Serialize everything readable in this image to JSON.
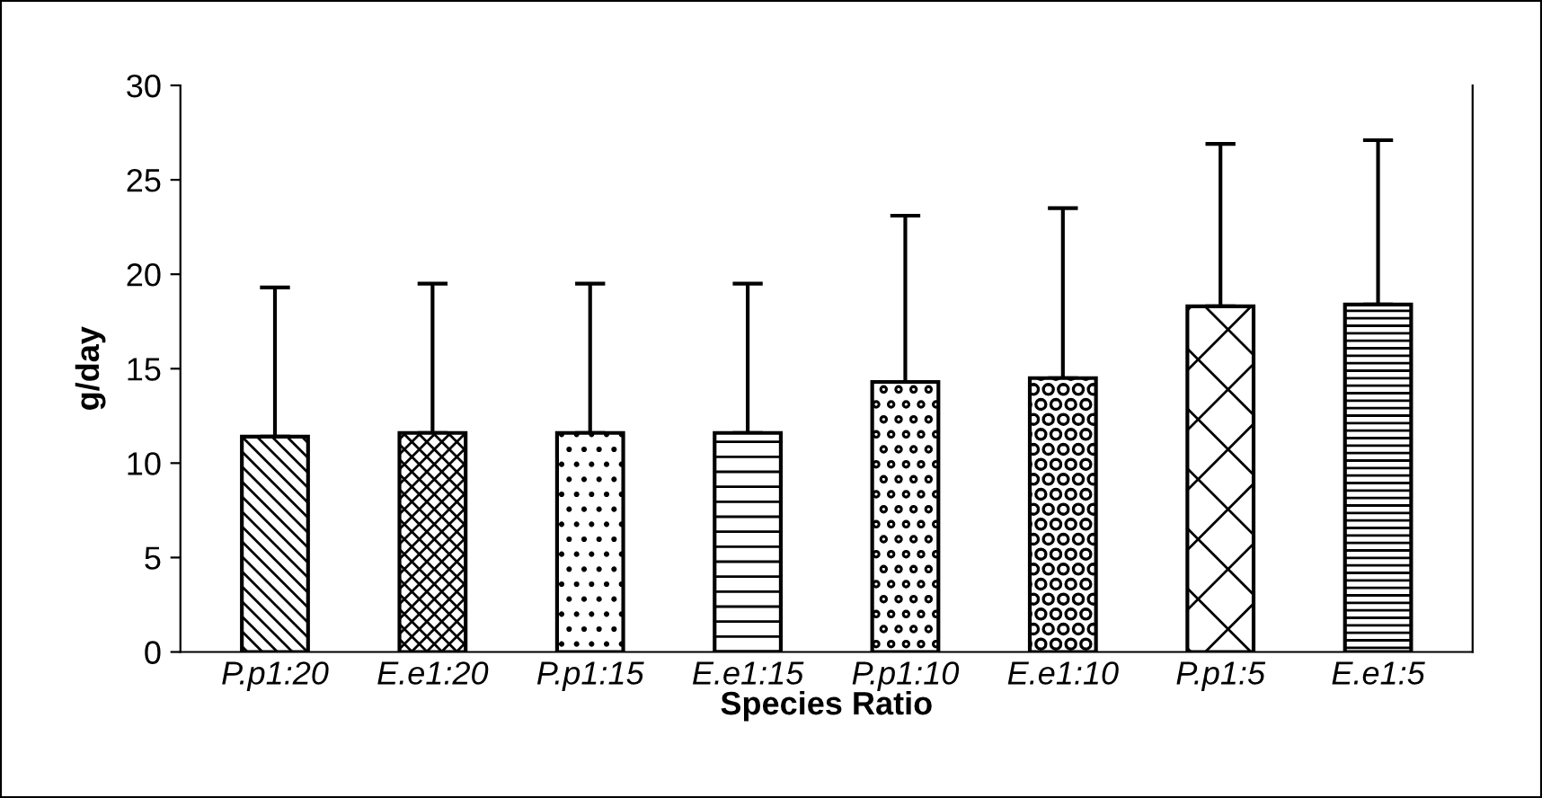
{
  "chart_data": {
    "type": "bar",
    "xlabel": "Species Ratio",
    "ylabel": "g/day",
    "categories": [
      "P.p1:20",
      "E.e1:20",
      "P.p1:15",
      "E.e1:15",
      "P.p1:10",
      "E.e1:10",
      "P.p1:5",
      "E.e1:5"
    ],
    "values": [
      11.4,
      11.6,
      11.6,
      11.6,
      14.3,
      14.5,
      18.3,
      18.4
    ],
    "errors": [
      [
        11.4,
        19.3
      ],
      [
        11.6,
        19.5
      ],
      [
        11.6,
        19.5
      ],
      [
        11.6,
        19.5
      ],
      [
        14.3,
        23.1
      ],
      [
        14.5,
        23.5
      ],
      [
        18.3,
        26.9
      ],
      [
        18.4,
        27.1
      ]
    ],
    "ylim": [
      0,
      30
    ],
    "yticks": [
      0,
      5,
      10,
      15,
      20,
      25,
      30
    ],
    "grid": false,
    "legend": false
  }
}
